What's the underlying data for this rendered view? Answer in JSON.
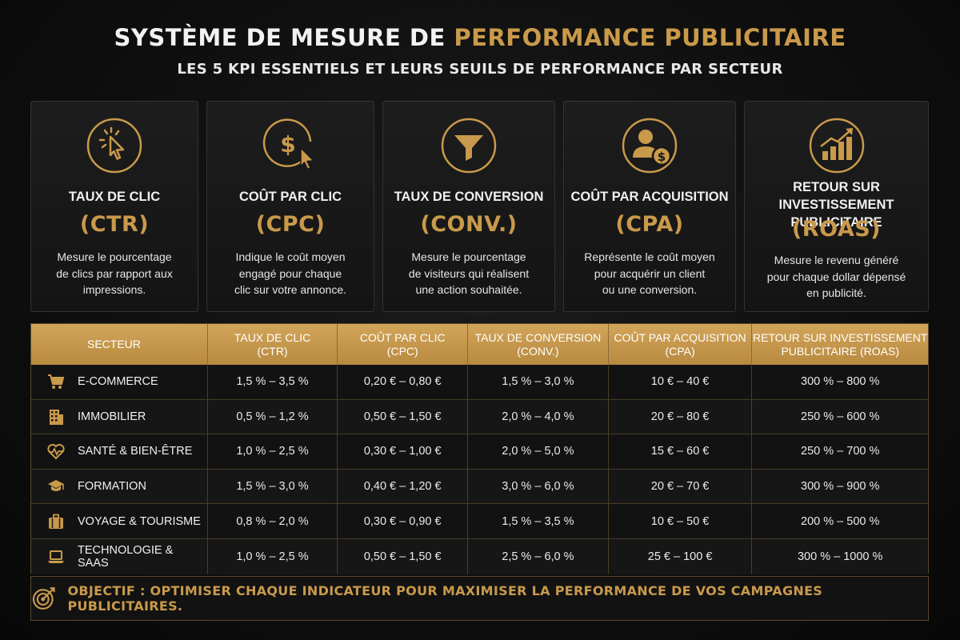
{
  "header": {
    "title_main": "SYSTÈME DE MESURE DE ",
    "title_accent": "PERFORMANCE PUBLICITAIRE",
    "subtitle": "LES 5 KPI ESSENTIELS ET LEURS SEUILS DE PERFORMANCE PAR SECTEUR"
  },
  "colors": {
    "gold": "#c99a4b",
    "background": "#0e0e0e",
    "header_gold": "#c99a4b"
  },
  "kpis": [
    {
      "icon": "click-cursor-icon",
      "name_line1": "TAUX DE CLIC",
      "name_line2": "",
      "abbr": "(CTR)",
      "desc_line1": "Mesure le pourcentage",
      "desc_line2": "de clics par rapport aux",
      "desc_line3": "impressions."
    },
    {
      "icon": "dollar-cursor-icon",
      "name_line1": "COÛT PAR CLIC",
      "name_line2": "",
      "abbr": "(CPC)",
      "desc_line1": "Indique le coût moyen",
      "desc_line2": "engagé pour chaque",
      "desc_line3": "clic sur votre annonce."
    },
    {
      "icon": "funnel-icon",
      "name_line1": "TAUX DE CONVERSION",
      "name_line2": "",
      "abbr": "(CONV.)",
      "desc_line1": "Mesure le pourcentage",
      "desc_line2": "de visiteurs qui réalisent",
      "desc_line3": "une action souhaitée."
    },
    {
      "icon": "user-dollar-icon",
      "name_line1": "COÛT PAR ACQUISITION",
      "name_line2": "",
      "abbr": "(CPA)",
      "desc_line1": "Représente le coût moyen",
      "desc_line2": "pour acquérir un client",
      "desc_line3": "ou une conversion."
    },
    {
      "icon": "growth-chart-icon",
      "name_line1": "RETOUR SUR INVESTISSEMENT",
      "name_line2": "PUBLICITAIRE",
      "abbr": "(ROAS)",
      "desc_line1": "Mesure le revenu généré",
      "desc_line2": "pour chaque dollar dépensé",
      "desc_line3": "en publicité."
    }
  ],
  "table": {
    "headers": [
      {
        "line1": "SECTEUR",
        "line2": ""
      },
      {
        "line1": "TAUX DE CLIC",
        "line2": "(CTR)"
      },
      {
        "line1": "COÛT PAR CLIC",
        "line2": "(CPC)"
      },
      {
        "line1": "TAUX DE CONVERSION",
        "line2": "(CONV.)"
      },
      {
        "line1": "COÛT PAR ACQUISITION",
        "line2": "(CPA)"
      },
      {
        "line1": "RETOUR SUR INVESTISSEMENT",
        "line2": "PUBLICITAIRE (ROAS)"
      }
    ],
    "rows": [
      {
        "icon": "cart-icon",
        "sector": "E-COMMERCE",
        "ctr": "1,5 % – 3,5 %",
        "cpc": "0,20 € – 0,80 €",
        "conv": "1,5 % – 3,0 %",
        "cpa": "10 € – 40 €",
        "roas": "300 % – 800 %"
      },
      {
        "icon": "building-icon",
        "sector": "IMMOBILIER",
        "ctr": "0,5 % – 1,2 %",
        "cpc": "0,50 € – 1,50 €",
        "conv": "2,0 % – 4,0 %",
        "cpa": "20 € – 80 €",
        "roas": "250 % – 600 %"
      },
      {
        "icon": "heart-pulse-icon",
        "sector": "SANTÉ & BIEN-ÊTRE",
        "ctr": "1,0 % – 2,5 %",
        "cpc": "0,30 € – 1,00 €",
        "conv": "2,0 % – 5,0 %",
        "cpa": "15 € – 60 €",
        "roas": "250 % – 700 %"
      },
      {
        "icon": "graduation-cap-icon",
        "sector": "FORMATION",
        "ctr": "1,5 % – 3,0 %",
        "cpc": "0,40 € – 1,20 €",
        "conv": "3,0 % – 6,0 %",
        "cpa": "20 € – 70 €",
        "roas": "300 % – 900 %"
      },
      {
        "icon": "suitcase-icon",
        "sector": "VOYAGE & TOURISME",
        "ctr": "0,8 % – 2,0 %",
        "cpc": "0,30 € – 0,90 €",
        "conv": "1,5 % – 3,5 %",
        "cpa": "10 € – 50 €",
        "roas": "200 % – 500 %"
      },
      {
        "icon": "laptop-icon",
        "sector": "TECHNOLOGIE & SAAS",
        "ctr": "1,0 % – 2,5 %",
        "cpc": "0,50 € – 1,50 €",
        "conv": "2,5 % – 6,0 %",
        "cpa": "25 € – 100 €",
        "roas": "300 % – 1000 %"
      }
    ]
  },
  "footer": {
    "icon": "target-icon",
    "text": "OBJECTIF : OPTIMISER CHAQUE INDICATEUR POUR MAXIMISER LA PERFORMANCE DE VOS CAMPAGNES PUBLICITAIRES."
  }
}
